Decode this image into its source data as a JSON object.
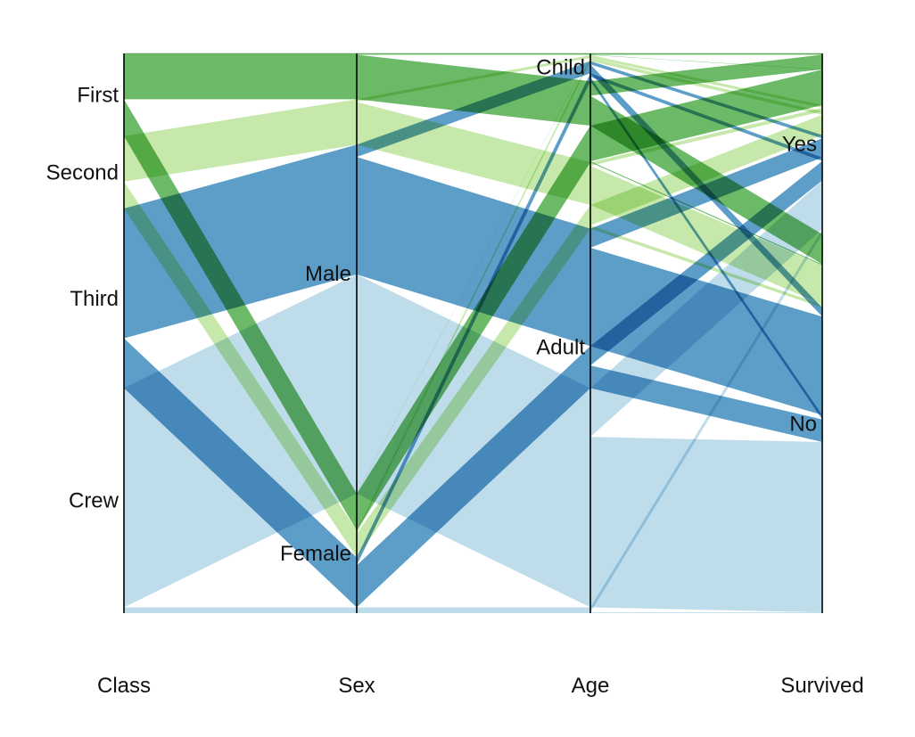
{
  "chart_data": {
    "type": "parallel-sets",
    "dimensions": [
      {
        "key": "class",
        "title": "Class",
        "categories": [
          "First",
          "Second",
          "Third",
          "Crew"
        ]
      },
      {
        "key": "sex",
        "title": "Sex",
        "categories": [
          "Male",
          "Female"
        ]
      },
      {
        "key": "age",
        "title": "Age",
        "categories": [
          "Child",
          "Adult"
        ]
      },
      {
        "key": "survived",
        "title": "Survived",
        "categories": [
          "Yes",
          "No"
        ]
      }
    ],
    "color_by": "class",
    "colors": {
      "First": "#33a02c",
      "Second": "#b2df8a",
      "Third": "#1f78b4",
      "Crew": "#a6cee3"
    },
    "records": [
      {
        "class": "Third",
        "sex": "Male",
        "age": "Child",
        "survived": "No",
        "count": 35
      },
      {
        "class": "Crew",
        "sex": "Male",
        "age": "Child",
        "survived": "No",
        "count": 0
      },
      {
        "class": "First",
        "sex": "Female",
        "age": "Child",
        "survived": "No",
        "count": 0
      },
      {
        "class": "Second",
        "sex": "Female",
        "age": "Child",
        "survived": "No",
        "count": 0
      },
      {
        "class": "Third",
        "sex": "Female",
        "age": "Child",
        "survived": "No",
        "count": 17
      },
      {
        "class": "Crew",
        "sex": "Female",
        "age": "Child",
        "survived": "No",
        "count": 0
      },
      {
        "class": "First",
        "sex": "Male",
        "age": "Adult",
        "survived": "No",
        "count": 118
      },
      {
        "class": "Second",
        "sex": "Male",
        "age": "Adult",
        "survived": "No",
        "count": 154
      },
      {
        "class": "Third",
        "sex": "Male",
        "age": "Adult",
        "survived": "No",
        "count": 387
      },
      {
        "class": "Crew",
        "sex": "Male",
        "age": "Adult",
        "survived": "No",
        "count": 670
      },
      {
        "class": "First",
        "sex": "Female",
        "age": "Adult",
        "survived": "No",
        "count": 4
      },
      {
        "class": "Second",
        "sex": "Female",
        "age": "Adult",
        "survived": "No",
        "count": 13
      },
      {
        "class": "Third",
        "sex": "Female",
        "age": "Adult",
        "survived": "No",
        "count": 89
      },
      {
        "class": "Crew",
        "sex": "Female",
        "age": "Adult",
        "survived": "No",
        "count": 3
      },
      {
        "class": "First",
        "sex": "Male",
        "age": "Child",
        "survived": "Yes",
        "count": 5
      },
      {
        "class": "Second",
        "sex": "Male",
        "age": "Child",
        "survived": "Yes",
        "count": 11
      },
      {
        "class": "Third",
        "sex": "Male",
        "age": "Child",
        "survived": "Yes",
        "count": 13
      },
      {
        "class": "Crew",
        "sex": "Male",
        "age": "Child",
        "survived": "Yes",
        "count": 0
      },
      {
        "class": "First",
        "sex": "Female",
        "age": "Child",
        "survived": "Yes",
        "count": 1
      },
      {
        "class": "Second",
        "sex": "Female",
        "age": "Child",
        "survived": "Yes",
        "count": 13
      },
      {
        "class": "Third",
        "sex": "Female",
        "age": "Child",
        "survived": "Yes",
        "count": 14
      },
      {
        "class": "Crew",
        "sex": "Female",
        "age": "Child",
        "survived": "Yes",
        "count": 0
      },
      {
        "class": "First",
        "sex": "Male",
        "age": "Adult",
        "survived": "Yes",
        "count": 57
      },
      {
        "class": "Second",
        "sex": "Male",
        "age": "Adult",
        "survived": "Yes",
        "count": 14
      },
      {
        "class": "Third",
        "sex": "Male",
        "age": "Adult",
        "survived": "Yes",
        "count": 75
      },
      {
        "class": "Crew",
        "sex": "Male",
        "age": "Adult",
        "survived": "Yes",
        "count": 192
      },
      {
        "class": "First",
        "sex": "Female",
        "age": "Adult",
        "survived": "Yes",
        "count": 140
      },
      {
        "class": "Second",
        "sex": "Female",
        "age": "Adult",
        "survived": "Yes",
        "count": 80
      },
      {
        "class": "Third",
        "sex": "Female",
        "age": "Adult",
        "survived": "Yes",
        "count": 76
      },
      {
        "class": "Crew",
        "sex": "Female",
        "age": "Adult",
        "survived": "Yes",
        "count": 20
      }
    ]
  }
}
